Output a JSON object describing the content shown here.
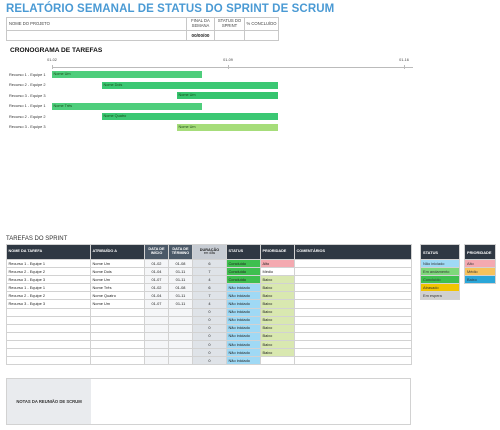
{
  "title": "RELATÓRIO SEMANAL DE STATUS DO SPRINT DE SCRUM",
  "project": {
    "name_label": "NOME DO PROJETO",
    "name_value": "",
    "week_end_label": "FINAL DA SEMANA",
    "week_end_value": "00/00/00",
    "status_label": "STATUS DO SPRINT",
    "status_value": "",
    "pct_label": "% CONCLUÍDO",
    "pct_value": ""
  },
  "gantt": {
    "title": "CRONOGRAMA DE TAREFAS",
    "ticks": [
      "01-02",
      "01-09",
      "01-16"
    ],
    "rows": [
      {
        "label": "Recurso 1 - Equipe 1",
        "bar": "Nome Um",
        "color": "#4ece7c"
      },
      {
        "label": "Recurso 2 - Equipe 2",
        "bar": "Nome Dois",
        "color": "#3bc873"
      },
      {
        "label": "Recurso 3 - Equipe 3",
        "bar": "Nome Um",
        "color": "#35c46e"
      },
      {
        "label": "Recurso 1 - Equipe 1",
        "bar": "Nome Três",
        "color": "#4ece7c"
      },
      {
        "label": "Recurso 2 - Equipe 2",
        "bar": "Nome Quatro",
        "color": "#3bc873"
      },
      {
        "label": "Recurso 3 - Equipe 3",
        "bar": "Nome Um",
        "color": "#a6dd7a"
      }
    ]
  },
  "tasks": {
    "title": "TAREFAS DO SPRINT",
    "headers": {
      "task": "NOME DA TAREFA",
      "assigned": "ATRIBUÍDO A",
      "start": "DATA DE INÍCIO",
      "end": "DATA DE TÉRMINO",
      "duration": "DURAÇÃO",
      "duration_sub": "em dias",
      "status": "STATUS",
      "priority": "PRIORIDADE",
      "comments": "COMENTÁRIOS"
    },
    "rows": [
      {
        "task": "Recurso 1 - Equipe 1",
        "assigned": "Nome Um",
        "start": "01-02",
        "end": "01-08",
        "duration": "6",
        "status": "Concluído",
        "priority": "Alto"
      },
      {
        "task": "Recurso 2 - Equipe 2",
        "assigned": "Nome Dois",
        "start": "01-04",
        "end": "01-11",
        "duration": "7",
        "status": "Concluído",
        "priority": "Médio"
      },
      {
        "task": "Recurso 3 - Equipe 3",
        "assigned": "Nome Um",
        "start": "01-07",
        "end": "01-11",
        "duration": "4",
        "status": "Concluído",
        "priority": "Baixo"
      },
      {
        "task": "Recurso 1 - Equipe 1",
        "assigned": "Nome Três",
        "start": "01-02",
        "end": "01-08",
        "duration": "6",
        "status": "Não iniciado",
        "priority": "Baixo"
      },
      {
        "task": "Recurso 2 - Equipe 2",
        "assigned": "Nome Quatro",
        "start": "01-04",
        "end": "01-11",
        "duration": "7",
        "status": "Não iniciado",
        "priority": "Baixo"
      },
      {
        "task": "Recurso 3 - Equipe 3",
        "assigned": "Nome Um",
        "start": "01-07",
        "end": "01-11",
        "duration": "4",
        "status": "Não iniciado",
        "priority": "Baixo"
      },
      {
        "task": "",
        "assigned": "",
        "start": "",
        "end": "",
        "duration": "0",
        "status": "Não iniciado",
        "priority": "Baixo"
      },
      {
        "task": "",
        "assigned": "",
        "start": "",
        "end": "",
        "duration": "0",
        "status": "Não iniciado",
        "priority": "Baixo"
      },
      {
        "task": "",
        "assigned": "",
        "start": "",
        "end": "",
        "duration": "0",
        "status": "Não iniciado",
        "priority": "Baixo"
      },
      {
        "task": "",
        "assigned": "",
        "start": "",
        "end": "",
        "duration": "0",
        "status": "Não iniciado",
        "priority": "Baixo"
      },
      {
        "task": "",
        "assigned": "",
        "start": "",
        "end": "",
        "duration": "0",
        "status": "Não iniciado",
        "priority": "Baixo"
      },
      {
        "task": "",
        "assigned": "",
        "start": "",
        "end": "",
        "duration": "0",
        "status": "Não iniciado",
        "priority": "Baixo"
      },
      {
        "task": "",
        "assigned": "",
        "start": "",
        "end": "",
        "duration": "0",
        "status": "Não iniciado",
        "priority": ""
      }
    ]
  },
  "notes_label": "NOTAS DA REUNIÃO DE SCRUM",
  "status_legend": {
    "title": "STATUS",
    "items": [
      {
        "label": "Não iniciado",
        "color": "#9fd9f5"
      },
      {
        "label": "Em andamento",
        "color": "#7ed87a"
      },
      {
        "label": "Concluído",
        "color": "#3fbf4f"
      },
      {
        "label": "Atrasado",
        "color": "#f2c400"
      },
      {
        "label": "Em espera",
        "color": "#d0d0d0"
      }
    ]
  },
  "priority_legend": {
    "title": "PRIORIDADE",
    "items": [
      {
        "label": "Alto",
        "color": "#f4a9b0"
      },
      {
        "label": "Médio",
        "color": "#f6c25c"
      },
      {
        "label": "Baixo",
        "color": "#2aa6d8"
      }
    ]
  },
  "cell_colors": {
    "status": {
      "Concluído": "#3fbf4f",
      "Não iniciado": "#9fd9f5",
      "Em andamento": "#7ed87a",
      "Atrasado": "#f2c400",
      "Em espera": "#d0d0d0"
    },
    "priority": {
      "Alto": "#f4a9b0",
      "Médio": "#ffffff",
      "Baixo": "#d9e8b0"
    }
  }
}
